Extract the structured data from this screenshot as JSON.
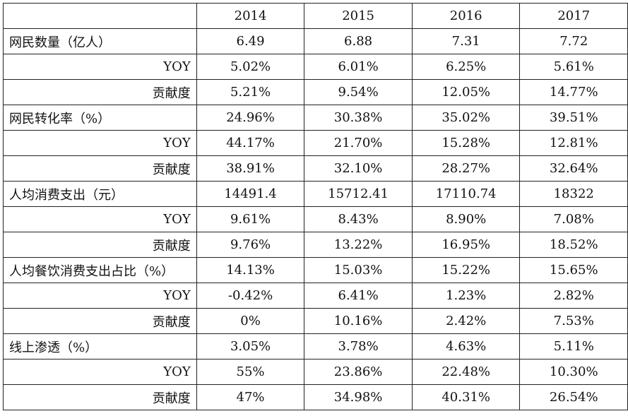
{
  "years": [
    "2014",
    "2015",
    "2016",
    "2017"
  ],
  "rows": [
    {
      "label": "网民数量（亿人）",
      "kind": "main",
      "values": [
        "6.49",
        "6.88",
        "7.31",
        "7.72"
      ]
    },
    {
      "label": "YOY",
      "kind": "sub",
      "values": [
        "5.02%",
        "6.01%",
        "6.25%",
        "5.61%"
      ]
    },
    {
      "label": "贡献度",
      "kind": "sub",
      "values": [
        "5.21%",
        "9.54%",
        "12.05%",
        "14.77%"
      ]
    },
    {
      "label": "网民转化率（%）",
      "kind": "main",
      "values": [
        "24.96%",
        "30.38%",
        "35.02%",
        "39.51%"
      ]
    },
    {
      "label": "YOY",
      "kind": "sub",
      "values": [
        "44.17%",
        "21.70%",
        "15.28%",
        "12.81%"
      ]
    },
    {
      "label": "贡献度",
      "kind": "sub",
      "values": [
        "38.91%",
        "32.10%",
        "28.27%",
        "32.64%"
      ]
    },
    {
      "label": "人均消费支出（元）",
      "kind": "main",
      "values": [
        "14491.4",
        "15712.41",
        "17110.74",
        "18322"
      ]
    },
    {
      "label": "YOY",
      "kind": "sub",
      "values": [
        "9.61%",
        "8.43%",
        "8.90%",
        "7.08%"
      ]
    },
    {
      "label": "贡献度",
      "kind": "sub",
      "values": [
        "9.76%",
        "13.22%",
        "16.95%",
        "18.52%"
      ]
    },
    {
      "label": "人均餐饮消费支出占比（%）",
      "kind": "main",
      "values": [
        "14.13%",
        "15.03%",
        "15.22%",
        "15.65%"
      ]
    },
    {
      "label": "YOY",
      "kind": "sub",
      "values": [
        "-0.42%",
        "6.41%",
        "1.23%",
        "2.82%"
      ]
    },
    {
      "label": "贡献度",
      "kind": "sub",
      "values": [
        "0%",
        "10.16%",
        "2.42%",
        "7.53%"
      ]
    },
    {
      "label": "线上渗透（%）",
      "kind": "main",
      "values": [
        "3.05%",
        "3.78%",
        "4.63%",
        "5.11%"
      ]
    },
    {
      "label": "YOY",
      "kind": "sub",
      "values": [
        "55%",
        "23.86%",
        "22.48%",
        "10.30%"
      ]
    },
    {
      "label": "贡献度",
      "kind": "sub",
      "values": [
        "47%",
        "34.98%",
        "40.31%",
        "26.54%"
      ]
    }
  ]
}
